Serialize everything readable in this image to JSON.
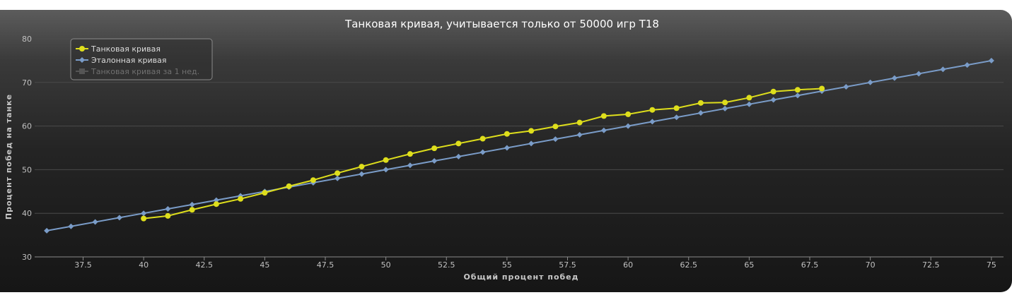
{
  "chart_data": {
    "type": "line",
    "title": "Танковая кривая, учитывается только от 50000 игр T18",
    "xlabel": "Общий процент побед",
    "ylabel": "Процент побед на танке",
    "xlim": [
      35.5,
      75.5
    ],
    "ylim": [
      30,
      80
    ],
    "x_ticks": [
      "37.5",
      "40",
      "42.5",
      "45",
      "47.5",
      "50",
      "52.5",
      "55",
      "57.5",
      "60",
      "62.5",
      "65",
      "67.5",
      "70",
      "72.5",
      "75"
    ],
    "y_ticks": [
      "30",
      "40",
      "50",
      "60",
      "70",
      "80"
    ],
    "grid": "horizontal",
    "legend_position": "top-left",
    "series": [
      {
        "name": "Танковая кривая",
        "color": "#dede1c",
        "marker": "circle",
        "x": [
          40,
          41,
          42,
          43,
          44,
          45,
          46,
          47,
          48,
          49,
          50,
          51,
          52,
          53,
          54,
          55,
          56,
          57,
          58,
          59,
          60,
          61,
          62,
          63,
          64,
          65,
          66,
          67,
          68
        ],
        "values": [
          38.8,
          39.4,
          40.8,
          42.1,
          43.3,
          44.7,
          46.2,
          47.6,
          49.2,
          50.7,
          52.2,
          53.6,
          54.9,
          56.0,
          57.1,
          58.2,
          58.9,
          59.9,
          60.8,
          62.3,
          62.7,
          63.7,
          64.1,
          65.3,
          65.4,
          66.5,
          67.9,
          68.3,
          68.6
        ],
        "visible": true
      },
      {
        "name": "Эталонная кривая",
        "color": "#7a9cc8",
        "marker": "diamond",
        "x": [
          36,
          37,
          38,
          39,
          40,
          41,
          42,
          43,
          44,
          45,
          46,
          47,
          48,
          49,
          50,
          51,
          52,
          53,
          54,
          55,
          56,
          57,
          58,
          59,
          60,
          61,
          62,
          63,
          64,
          65,
          66,
          67,
          68,
          69,
          70,
          71,
          72,
          73,
          74,
          75
        ],
        "values": [
          36,
          37,
          38,
          39,
          40,
          41,
          42,
          43,
          44,
          45,
          46,
          47,
          48,
          49,
          50,
          51,
          52,
          53,
          54,
          55,
          56,
          57,
          58,
          59,
          60,
          61,
          62,
          63,
          64,
          65,
          66,
          67,
          68,
          69,
          70,
          71,
          72,
          73,
          74,
          75
        ],
        "visible": true
      },
      {
        "name": "Танковая кривая за 1 нед.",
        "color": "#555555",
        "marker": "square",
        "x": [],
        "values": [],
        "visible": false
      }
    ]
  }
}
